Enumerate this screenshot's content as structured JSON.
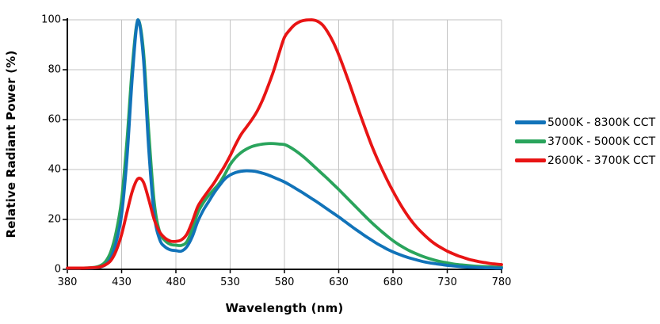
{
  "chart": {
    "y_axis": {
      "title": "Relative Radiant Power (%)",
      "ticks": [
        0,
        20,
        40,
        60,
        80,
        100
      ]
    },
    "x_axis": {
      "title": "Wavelength (nm)",
      "ticks": [
        380,
        430,
        480,
        530,
        580,
        630,
        680,
        730,
        780
      ]
    },
    "colors": {
      "grid": "#c3c3c3",
      "axis": "#000000",
      "background": "#ffffff"
    }
  },
  "chart_data": {
    "type": "line",
    "title": "",
    "xlabel": "Wavelength (nm)",
    "ylabel": "Relative Radiant Power (%)",
    "xlim": [
      380,
      780
    ],
    "ylim": [
      0,
      100
    ],
    "grid": true,
    "legend_position": "right",
    "x_start": 380,
    "x_step": 5,
    "series": [
      {
        "name": "5000K - 8300K CCT",
        "color": "#1173b9",
        "values": [
          0.4,
          0.4,
          0.4,
          0.5,
          0.5,
          0.6,
          0.9,
          1.8,
          4.5,
          11,
          22,
          45,
          78,
          100,
          85,
          48,
          22,
          12,
          9,
          7.8,
          7.5,
          7.3,
          9,
          13,
          19,
          23.5,
          27,
          30.5,
          33.5,
          36.2,
          37.8,
          38.8,
          39.3,
          39.5,
          39.4,
          39.1,
          38.5,
          37.8,
          36.9,
          36,
          35,
          33.8,
          32.5,
          31.2,
          29.8,
          28.4,
          27,
          25.5,
          24,
          22.5,
          21,
          19.4,
          17.8,
          16.2,
          14.7,
          13.2,
          11.8,
          10.4,
          9.2,
          8,
          7,
          6.1,
          5.3,
          4.6,
          4,
          3.4,
          2.9,
          2.5,
          2.2,
          1.9,
          1.6,
          1.4,
          1.2,
          1,
          0.9,
          0.8,
          0.7,
          0.6,
          0.6,
          0.5,
          0.5
        ]
      },
      {
        "name": "3700K - 5000K CCT",
        "color": "#2aa45c",
        "values": [
          0.4,
          0.4,
          0.4,
          0.5,
          0.6,
          0.8,
          1.4,
          3,
          7,
          15,
          28,
          52,
          82,
          100,
          88,
          55,
          27,
          15,
          11.5,
          10,
          9.7,
          9.6,
          11,
          16,
          22.5,
          26.5,
          29.5,
          32,
          34.5,
          38,
          42,
          44.8,
          46.8,
          48.2,
          49.2,
          49.8,
          50.2,
          50.4,
          50.4,
          50.2,
          50,
          49,
          47.6,
          46,
          44.2,
          42.2,
          40.2,
          38.2,
          36.2,
          34.1,
          32,
          29.8,
          27.6,
          25.4,
          23.2,
          21,
          18.9,
          16.9,
          15,
          13.2,
          11.5,
          10,
          8.7,
          7.5,
          6.5,
          5.6,
          4.8,
          4.1,
          3.5,
          3,
          2.6,
          2.2,
          1.9,
          1.7,
          1.5,
          1.3,
          1.2,
          1.1,
          1,
          0.9,
          0.9
        ]
      },
      {
        "name": "2600K - 3700K CCT",
        "color": "#e81414",
        "values": [
          0.5,
          0.5,
          0.5,
          0.5,
          0.6,
          0.7,
          1,
          1.8,
          3.5,
          7.5,
          14,
          23,
          31.5,
          36.3,
          35,
          28,
          20,
          15,
          12.5,
          11.3,
          11.2,
          11.8,
          14,
          19,
          25,
          28.5,
          31.5,
          34.5,
          38,
          41.5,
          45.5,
          50,
          54,
          57,
          60,
          63.5,
          68,
          73.5,
          79.5,
          86.5,
          93,
          96,
          98.2,
          99.4,
          99.9,
          100,
          99.5,
          98,
          95,
          91,
          86,
          80.3,
          74.3,
          68,
          61.8,
          55.8,
          50,
          44.8,
          40,
          35.5,
          31.3,
          27.4,
          23.8,
          20.6,
          17.8,
          15.4,
          13.3,
          11.4,
          9.8,
          8.5,
          7.3,
          6.3,
          5.4,
          4.7,
          4,
          3.5,
          3,
          2.7,
          2.3,
          2.1,
          1.9
        ]
      }
    ]
  }
}
